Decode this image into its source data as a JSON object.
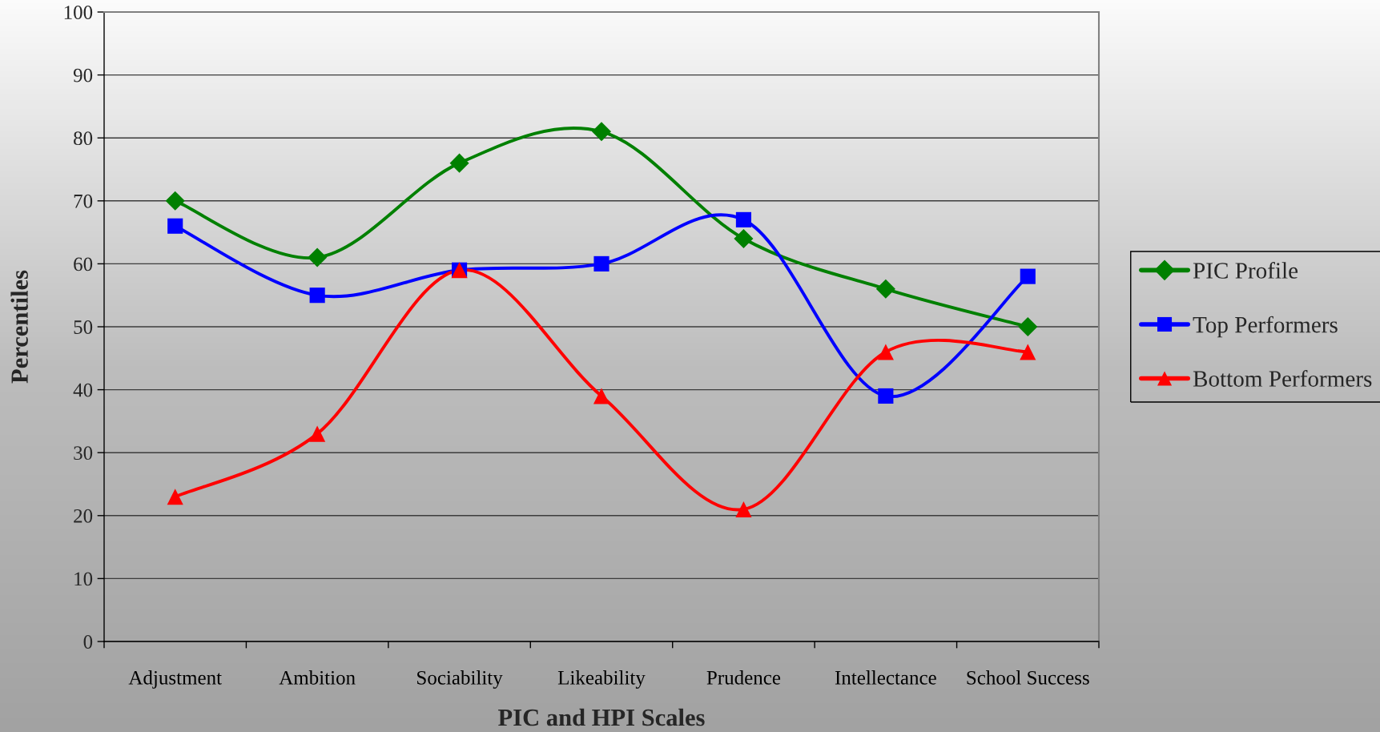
{
  "chart_data": {
    "type": "line",
    "xlabel": "PIC and HPI Scales",
    "ylabel": "Percentiles",
    "categories": [
      "Adjustment",
      "Ambition",
      "Sociability",
      "Likeability",
      "Prudence",
      "Intellectance",
      "School Success"
    ],
    "series": [
      {
        "name": "PIC Profile",
        "color": "#008000",
        "marker": "diamond",
        "values": [
          70,
          61,
          76,
          81,
          64,
          56,
          50
        ]
      },
      {
        "name": "Top Performers",
        "color": "#0000ff",
        "marker": "square",
        "values": [
          66,
          55,
          59,
          60,
          67,
          39,
          58
        ]
      },
      {
        "name": "Bottom Performers",
        "color": "#ff0000",
        "marker": "triangle",
        "values": [
          23,
          33,
          59,
          39,
          21,
          46,
          46
        ]
      }
    ],
    "ylim": [
      0,
      100
    ],
    "yticks": [
      0,
      10,
      20,
      30,
      40,
      50,
      60,
      70,
      80,
      90,
      100
    ],
    "grid": "y",
    "legend": "right",
    "line_style": "solid"
  }
}
